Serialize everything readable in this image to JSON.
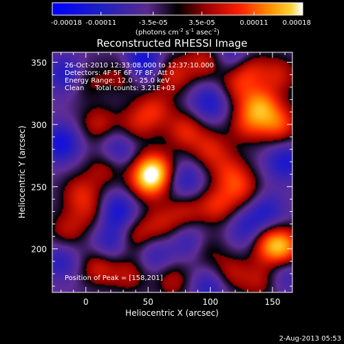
{
  "chart_data": {
    "type": "heatmap",
    "title": "Reconstructed RHESSI Image",
    "xlabel": "Heliocentric X (arcsec)",
    "ylabel": "Heliocentric Y (arcsec)",
    "xlim": [
      -27,
      166
    ],
    "ylim": [
      165,
      358
    ],
    "xticks": [
      0,
      50,
      100,
      150
    ],
    "yticks": [
      200,
      250,
      300,
      350
    ],
    "colorbar": {
      "range": [
        -0.00018,
        0.00018
      ],
      "tick_values": [
        -0.00018,
        -0.00011,
        -3.5e-05,
        3.5e-05,
        0.00011,
        0.00018
      ],
      "tick_labels": [
        "-0.00018",
        "-0.00011",
        "-3.5e-05",
        "3.5e-05",
        "0.00011",
        "0.00018"
      ],
      "units_main": "(photons cm",
      "units_exp1": "-2",
      "units_mid": " s",
      "units_exp2": "-1",
      "units_tail": " asec",
      "units_exp3": "-2",
      "units_end": ")"
    },
    "annotations": [
      "26-Oct-2010 12:33:08.000 to 12:37:10.000",
      "Detectors: 4F 5F 6F 7F 8F, Att 0",
      "Energy Range: 12.0 - 25.0 keV",
      "Clean     Total counts: 3.21E+03"
    ],
    "peak_label": "Position of Peak = [158,201]",
    "peak": [
      158,
      201
    ],
    "sources": [
      {
        "x": 55,
        "y": 263,
        "v": 1.0
      },
      {
        "x": 50,
        "y": 255,
        "v": 0.85
      },
      {
        "x": 158,
        "y": 201,
        "v": 1.0
      },
      {
        "x": 145,
        "y": 205,
        "v": 0.6
      },
      {
        "x": 140,
        "y": 315,
        "v": 0.9
      },
      {
        "x": 155,
        "y": 300,
        "v": 0.75
      },
      {
        "x": 130,
        "y": 300,
        "v": 0.55
      },
      {
        "x": 55,
        "y": 312,
        "v": 0.55
      },
      {
        "x": 40,
        "y": 300,
        "v": 0.45
      },
      {
        "x": 10,
        "y": 300,
        "v": 0.5
      },
      {
        "x": -5,
        "y": 245,
        "v": 0.5
      },
      {
        "x": 15,
        "y": 265,
        "v": 0.45
      },
      {
        "x": 80,
        "y": 295,
        "v": 0.6
      },
      {
        "x": 100,
        "y": 280,
        "v": 0.55
      },
      {
        "x": 115,
        "y": 262,
        "v": 0.5
      },
      {
        "x": 105,
        "y": 235,
        "v": 0.6
      },
      {
        "x": 125,
        "y": 248,
        "v": 0.55
      },
      {
        "x": 80,
        "y": 230,
        "v": 0.45
      },
      {
        "x": 60,
        "y": 220,
        "v": 0.45
      },
      {
        "x": 40,
        "y": 210,
        "v": 0.5
      },
      {
        "x": -15,
        "y": 215,
        "v": 0.45
      },
      {
        "x": 5,
        "y": 230,
        "v": 0.4
      },
      {
        "x": 10,
        "y": 185,
        "v": 0.55
      },
      {
        "x": 35,
        "y": 180,
        "v": 0.45
      },
      {
        "x": 70,
        "y": 175,
        "v": 0.45
      },
      {
        "x": 95,
        "y": 200,
        "v": 0.45
      },
      {
        "x": 115,
        "y": 180,
        "v": 0.5
      },
      {
        "x": 140,
        "y": 175,
        "v": 0.45
      },
      {
        "x": 70,
        "y": 340,
        "v": 0.55
      },
      {
        "x": 95,
        "y": 350,
        "v": 0.5
      },
      {
        "x": 130,
        "y": 345,
        "v": 0.6
      },
      {
        "x": 155,
        "y": 340,
        "v": 0.5
      },
      {
        "x": 30,
        "y": 340,
        "v": 0.45
      },
      {
        "x": 0,
        "y": 335,
        "v": 0.4
      },
      {
        "x": 120,
        "y": 330,
        "v": 0.45
      }
    ],
    "sinks": [
      {
        "x": 45,
        "y": 350,
        "v": -0.8
      },
      {
        "x": -15,
        "y": 340,
        "v": -0.6
      },
      {
        "x": -20,
        "y": 285,
        "v": -0.7
      },
      {
        "x": 25,
        "y": 280,
        "v": -0.5
      },
      {
        "x": 25,
        "y": 230,
        "v": -0.7
      },
      {
        "x": 100,
        "y": 318,
        "v": -0.6
      },
      {
        "x": 120,
        "y": 355,
        "v": -0.5
      },
      {
        "x": 160,
        "y": 270,
        "v": -0.6
      },
      {
        "x": 145,
        "y": 230,
        "v": -0.5
      },
      {
        "x": 80,
        "y": 255,
        "v": -0.5
      },
      {
        "x": 85,
        "y": 205,
        "v": -0.55
      },
      {
        "x": 55,
        "y": 195,
        "v": -0.45
      },
      {
        "x": 100,
        "y": 170,
        "v": -0.55
      },
      {
        "x": 130,
        "y": 215,
        "v": -0.5
      },
      {
        "x": -20,
        "y": 190,
        "v": -0.45
      },
      {
        "x": 20,
        "y": 205,
        "v": -0.5
      },
      {
        "x": 160,
        "y": 180,
        "v": -0.4
      }
    ]
  },
  "footer": {
    "date": "2-Aug-2013 05:53"
  }
}
